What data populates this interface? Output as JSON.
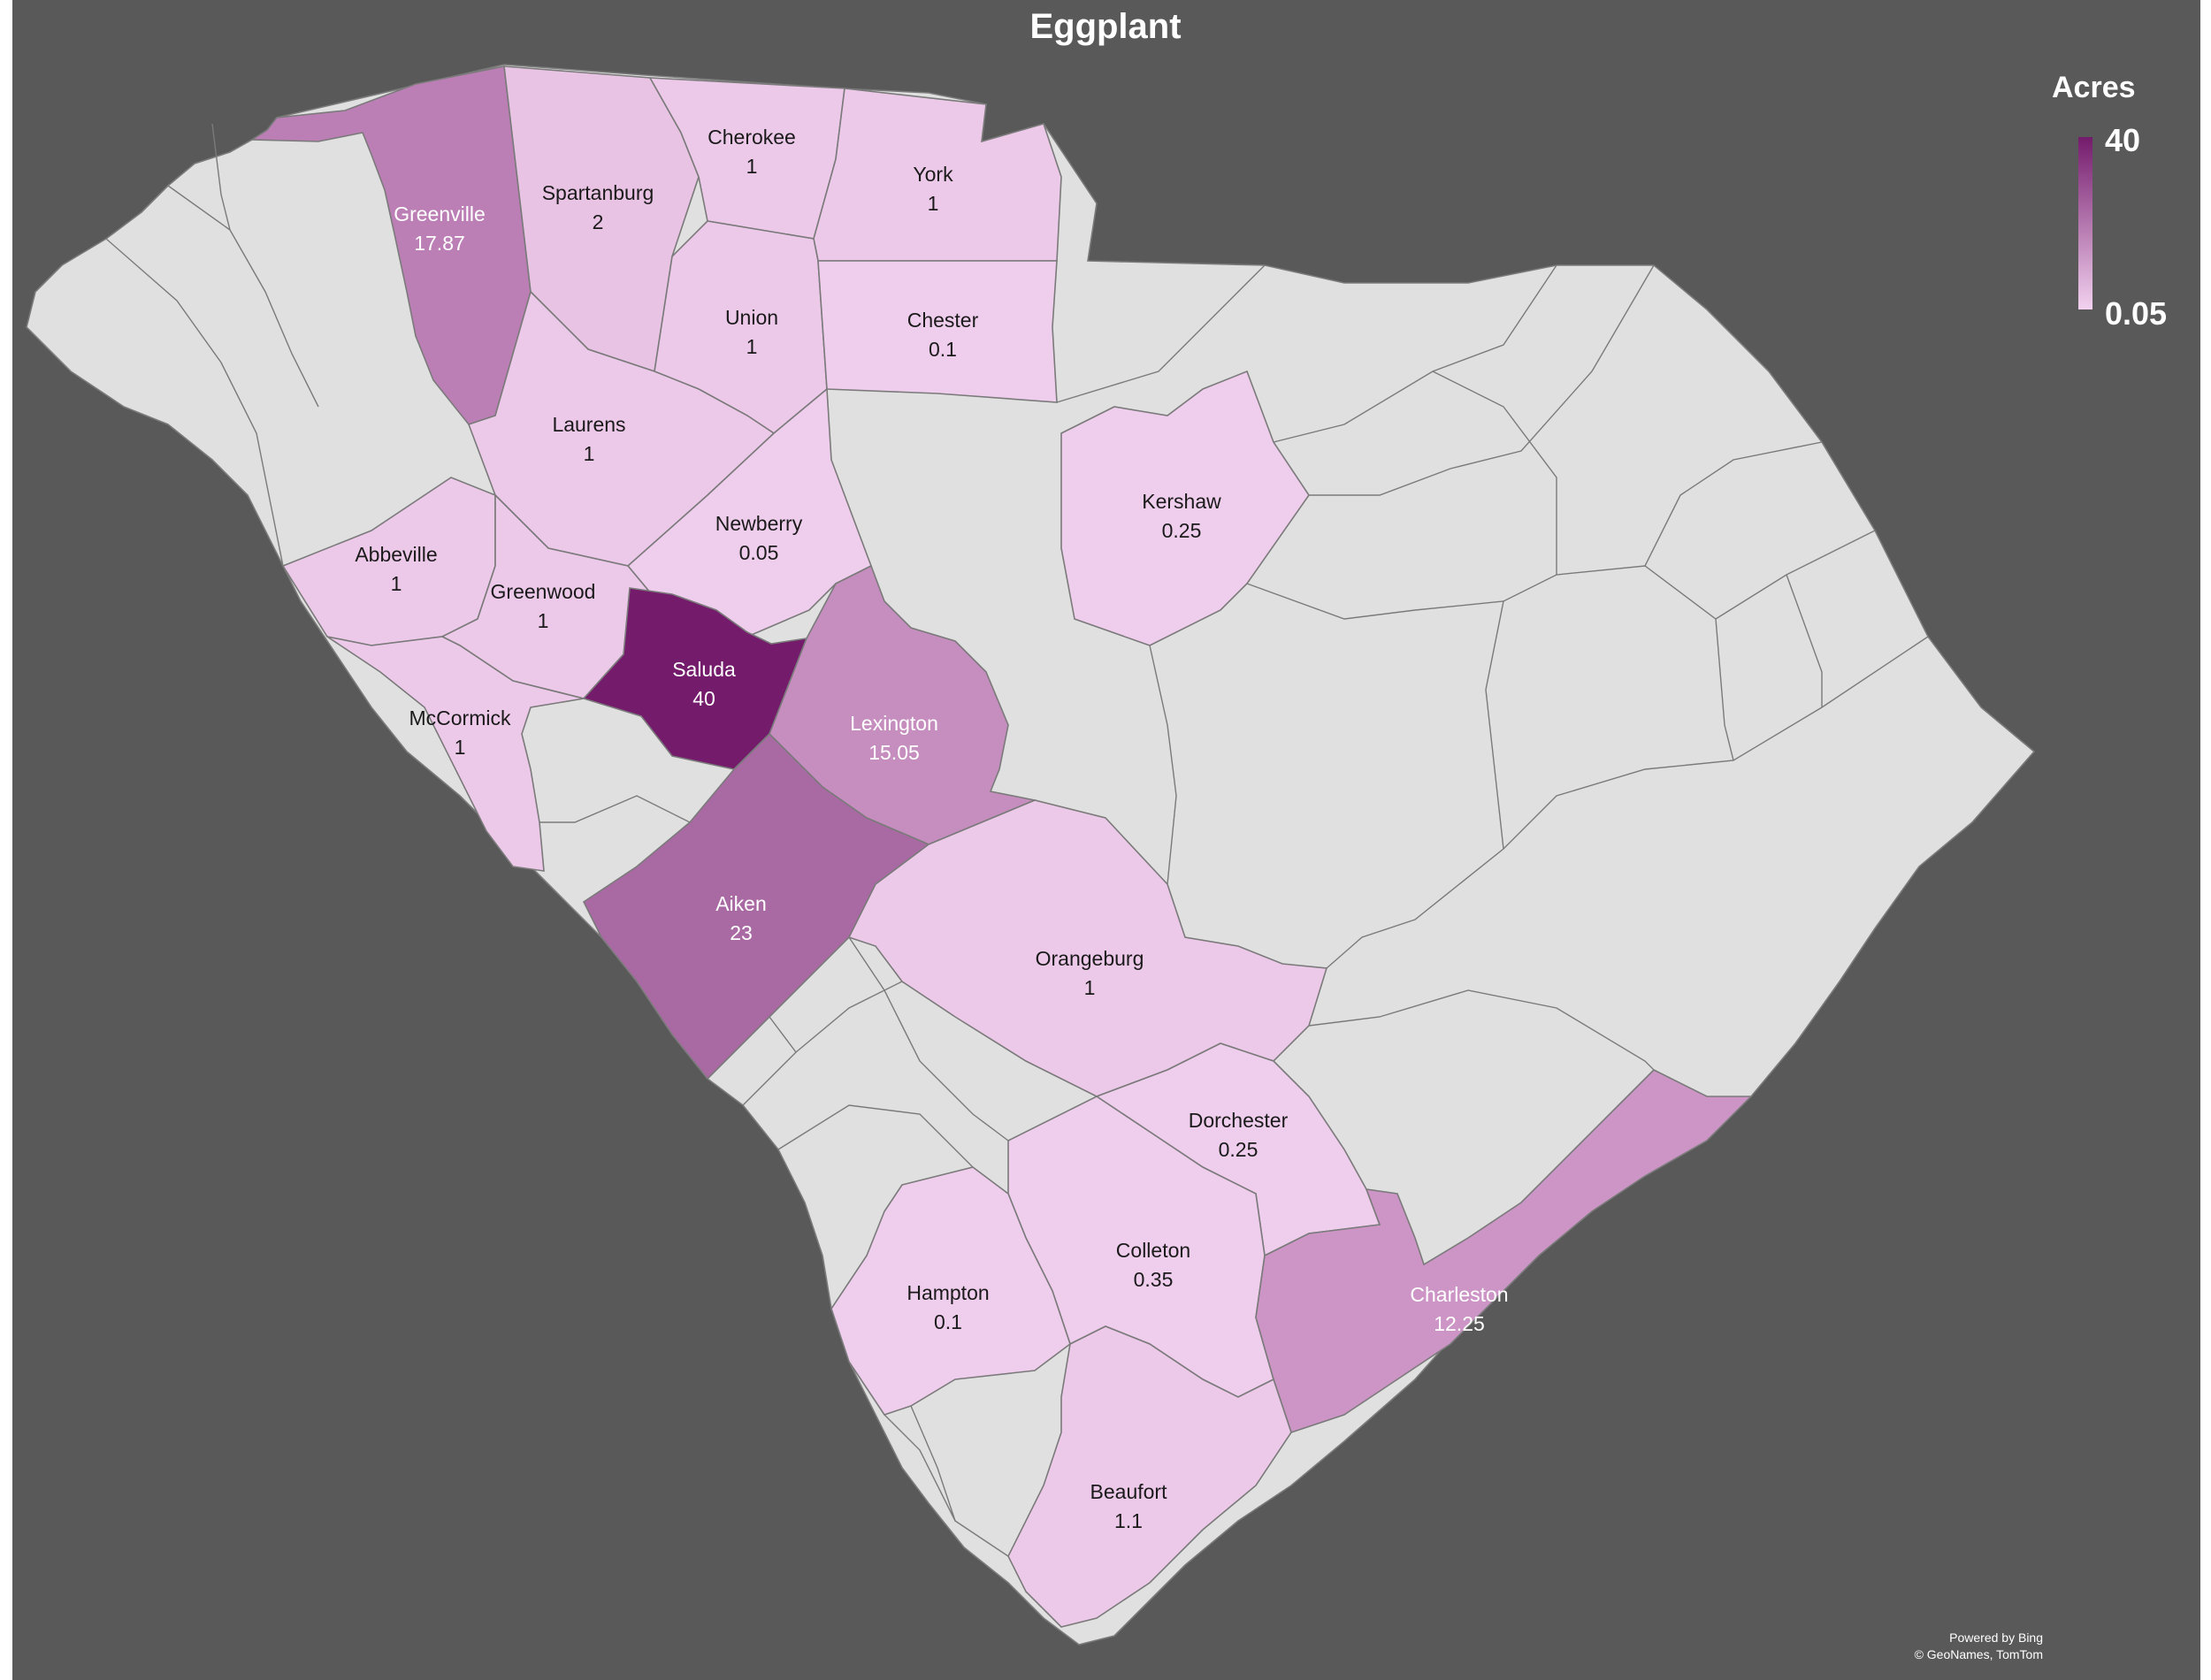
{
  "title": "Eggplant",
  "legend": {
    "title": "Acres",
    "max_label": "40",
    "min_label": "0.05",
    "min_value": 0.05,
    "max_value": 40,
    "color_low": "#f2d1ef",
    "color_high": "#741b6c"
  },
  "colors": {
    "no_data": "#e0e0e0",
    "background": "#595959",
    "text_dark": "#1a1a1a",
    "text_light": "#ffffff"
  },
  "attribution": {
    "line1": "Powered by Bing",
    "line2": "© GeoNames, TomTom"
  },
  "counties": [
    {
      "name": "Greenville",
      "value": "17.87",
      "acres": 17.87,
      "fill": "#bc7fb5",
      "light_text": true
    },
    {
      "name": "Spartanburg",
      "value": "2",
      "acres": 2,
      "fill": "#e8c3e3",
      "light_text": false
    },
    {
      "name": "Cherokee",
      "value": "1",
      "acres": 1,
      "fill": "#edc9e9",
      "light_text": false
    },
    {
      "name": "York",
      "value": "1",
      "acres": 1,
      "fill": "#edc9e9",
      "light_text": false
    },
    {
      "name": "Union",
      "value": "1",
      "acres": 1,
      "fill": "#edc9e9",
      "light_text": false
    },
    {
      "name": "Chester",
      "value": "0.1",
      "acres": 0.1,
      "fill": "#efcdec",
      "light_text": false
    },
    {
      "name": "Laurens",
      "value": "1",
      "acres": 1,
      "fill": "#edc9e9",
      "light_text": false
    },
    {
      "name": "Newberry",
      "value": "0.05",
      "acres": 0.05,
      "fill": "#efcdec",
      "light_text": false
    },
    {
      "name": "Kershaw",
      "value": "0.25",
      "acres": 0.25,
      "fill": "#efcdec",
      "light_text": false
    },
    {
      "name": "Abbeville",
      "value": "1",
      "acres": 1,
      "fill": "#edc9e9",
      "light_text": false
    },
    {
      "name": "Greenwood",
      "value": "1",
      "acres": 1,
      "fill": "#edc9e9",
      "light_text": false
    },
    {
      "name": "Saluda",
      "value": "40",
      "acres": 40,
      "fill": "#741b6c",
      "light_text": true
    },
    {
      "name": "Lexington",
      "value": "15.05",
      "acres": 15.05,
      "fill": "#c68ebf",
      "light_text": true
    },
    {
      "name": "McCormick",
      "value": "1",
      "acres": 1,
      "fill": "#edc9e9",
      "light_text": false
    },
    {
      "name": "Aiken",
      "value": "23",
      "acres": 23,
      "fill": "#a96aa3",
      "light_text": true
    },
    {
      "name": "Orangeburg",
      "value": "1",
      "acres": 1,
      "fill": "#edc9e9",
      "light_text": false
    },
    {
      "name": "Dorchester",
      "value": "0.25",
      "acres": 0.25,
      "fill": "#efcdec",
      "light_text": false
    },
    {
      "name": "Colleton",
      "value": "0.35",
      "acres": 0.35,
      "fill": "#efcdec",
      "light_text": false
    },
    {
      "name": "Hampton",
      "value": "0.1",
      "acres": 0.1,
      "fill": "#efcdec",
      "light_text": false
    },
    {
      "name": "Charleston",
      "value": "12.25",
      "acres": 12.25,
      "fill": "#cc95c6",
      "light_text": true
    },
    {
      "name": "Beaufort",
      "value": "1.1",
      "acres": 1.1,
      "fill": "#edc9e9",
      "light_text": false
    }
  ]
}
